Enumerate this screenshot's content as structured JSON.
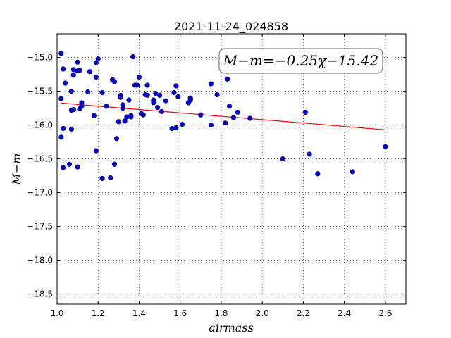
{
  "chart_data": {
    "type": "scatter",
    "title": "2021-11-24_024858",
    "xlabel": "airmass",
    "ylabel": "M−m",
    "xlim": [
      1.0,
      2.7
    ],
    "ylim": [
      -14.65,
      -18.65
    ],
    "x_ticks": [
      1.0,
      1.2,
      1.4,
      1.6,
      1.8,
      2.0,
      2.2,
      2.4,
      2.6
    ],
    "x_tick_labels": [
      "1.0",
      "1.2",
      "1.4",
      "1.6",
      "1.8",
      "2.0",
      "2.2",
      "2.4",
      "2.6"
    ],
    "y_ticks": [
      -15.0,
      -15.5,
      -16.0,
      -16.5,
      -17.0,
      -17.5,
      -18.0,
      -18.5
    ],
    "y_tick_labels": [
      "−15.0",
      "−15.5",
      "−16.0",
      "−16.5",
      "−17.0",
      "−17.5",
      "−18.0",
      "−18.5"
    ],
    "grid": true,
    "annotation": "M−m=−0.25χ−15.42",
    "fit": {
      "slope": -0.25,
      "intercept": -15.42,
      "x_range": [
        1.02,
        2.6
      ],
      "color": "#ff0000"
    },
    "point_color": "#0000cc",
    "points": [
      [
        1.02,
        -14.94
      ],
      [
        1.02,
        -15.61
      ],
      [
        1.02,
        -16.18
      ],
      [
        1.03,
        -15.17
      ],
      [
        1.03,
        -16.05
      ],
      [
        1.03,
        -16.63
      ],
      [
        1.04,
        -15.38
      ],
      [
        1.06,
        -16.58
      ],
      [
        1.07,
        -15.5
      ],
      [
        1.07,
        -15.78
      ],
      [
        1.07,
        -16.06
      ],
      [
        1.08,
        -15.18
      ],
      [
        1.08,
        -15.26
      ],
      [
        1.08,
        -15.77
      ],
      [
        1.1,
        -15.07
      ],
      [
        1.1,
        -15.2
      ],
      [
        1.1,
        -16.62
      ],
      [
        1.11,
        -15.19
      ],
      [
        1.11,
        -15.76
      ],
      [
        1.12,
        -15.67
      ],
      [
        1.12,
        -15.72
      ],
      [
        1.15,
        -15.51
      ],
      [
        1.16,
        -15.21
      ],
      [
        1.18,
        -15.86
      ],
      [
        1.19,
        -15.08
      ],
      [
        1.19,
        -15.29
      ],
      [
        1.19,
        -16.38
      ],
      [
        1.2,
        -15.02
      ],
      [
        1.22,
        -15.52
      ],
      [
        1.22,
        -16.79
      ],
      [
        1.24,
        -15.72
      ],
      [
        1.26,
        -16.78
      ],
      [
        1.27,
        -15.33
      ],
      [
        1.28,
        -15.36
      ],
      [
        1.28,
        -16.58
      ],
      [
        1.29,
        -16.2
      ],
      [
        1.3,
        -15.95
      ],
      [
        1.31,
        -15.56
      ],
      [
        1.31,
        -15.59
      ],
      [
        1.32,
        -15.7
      ],
      [
        1.32,
        -15.75
      ],
      [
        1.33,
        -15.94
      ],
      [
        1.34,
        -15.88
      ],
      [
        1.35,
        -15.63
      ],
      [
        1.36,
        -15.86
      ],
      [
        1.36,
        -15.88
      ],
      [
        1.37,
        -14.99
      ],
      [
        1.38,
        -15.41
      ],
      [
        1.39,
        -15.41
      ],
      [
        1.4,
        -15.29
      ],
      [
        1.41,
        -15.83
      ],
      [
        1.42,
        -15.85
      ],
      [
        1.43,
        -15.55
      ],
      [
        1.44,
        -15.56
      ],
      [
        1.44,
        -15.41
      ],
      [
        1.47,
        -15.63
      ],
      [
        1.47,
        -15.67
      ],
      [
        1.48,
        -15.53
      ],
      [
        1.49,
        -15.74
      ],
      [
        1.5,
        -15.56
      ],
      [
        1.51,
        -15.8
      ],
      [
        1.53,
        -15.64
      ],
      [
        1.56,
        -16.05
      ],
      [
        1.57,
        -15.52
      ],
      [
        1.58,
        -15.42
      ],
      [
        1.58,
        -16.04
      ],
      [
        1.59,
        -15.58
      ],
      [
        1.61,
        -15.99
      ],
      [
        1.64,
        -15.67
      ],
      [
        1.65,
        -15.6
      ],
      [
        1.65,
        -15.63
      ],
      [
        1.7,
        -15.85
      ],
      [
        1.75,
        -15.39
      ],
      [
        1.75,
        -16.0
      ],
      [
        1.78,
        -15.55
      ],
      [
        1.82,
        -15.97
      ],
      [
        1.83,
        -15.32
      ],
      [
        1.84,
        -15.72
      ],
      [
        1.86,
        -15.89
      ],
      [
        1.88,
        -15.81
      ],
      [
        1.94,
        -15.9
      ],
      [
        2.1,
        -16.5
      ],
      [
        2.21,
        -15.81
      ],
      [
        2.23,
        -16.43
      ],
      [
        2.27,
        -16.72
      ],
      [
        2.44,
        -16.69
      ],
      [
        2.6,
        -16.32
      ]
    ]
  }
}
